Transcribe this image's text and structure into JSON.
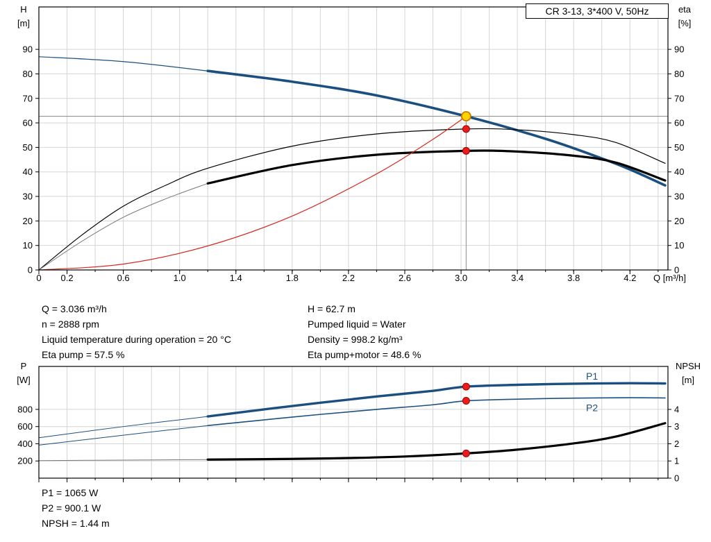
{
  "header": {
    "title_box": "CR 3-13, 3*400 V, 50Hz"
  },
  "info_left": [
    "Q = 3.036 m³/h",
    "n = 2888 rpm",
    "Liquid temperature during operation = 20 °C",
    "Eta pump = 57.5 %"
  ],
  "info_right": [
    "H = 62.7 m",
    "Pumped liquid = Water",
    "Density = 998.2 kg/m³",
    "Eta pump+motor = 48.6 %"
  ],
  "info_bottom": [
    "P1 = 1065 W",
    "P2 = 900.1 W",
    "NPSH = 1.44 m"
  ],
  "colors": {
    "curve_blue": "#1b4f7f",
    "curve_red": "#d42a1e",
    "marker_red": "#ec1c1c",
    "marker_red_edge": "#9b0000",
    "duty_fill": "#ffd200",
    "duty_stroke": "#c97b00",
    "grid": "#d4d4d4",
    "crosshair": "#8c8c8c",
    "black": "#000000",
    "gray_lead": "#777777",
    "frame": "#000000"
  },
  "chart_data": [
    {
      "type": "line",
      "title": "CR 3-13, 3*400 V, 50Hz",
      "x": {
        "label": "Q [m³/h]",
        "min": 0,
        "max": 4.47,
        "minor_step": 0.2,
        "show_labels": true,
        "tick_labels": [
          "0",
          "0.2",
          "0.6",
          "1.0",
          "1.4",
          "1.8",
          "2.2",
          "2.6",
          "3.0",
          "3.4",
          "3.8",
          "4.2"
        ]
      },
      "y_left": {
        "label": [
          "H",
          "[m]"
        ],
        "min": 0,
        "max": 107.3,
        "ticks": [
          0,
          10,
          20,
          30,
          40,
          50,
          60,
          70,
          80,
          90
        ]
      },
      "y_right": {
        "label": [
          "eta",
          "[%]"
        ],
        "min": 0,
        "max": 107.3,
        "ticks": [
          0,
          10,
          20,
          30,
          40,
          50,
          60,
          70,
          80,
          90
        ]
      },
      "duty_point": {
        "q": 3.036,
        "h": 62.7
      },
      "crosshair": {
        "x": 3.036,
        "y": 62.7
      },
      "series": [
        {
          "name": "qh-curve-extension",
          "axis": "left",
          "color_key": "curve_blue",
          "width": 1.2,
          "points": [
            [
              0,
              87
            ],
            [
              0.6,
              85.0
            ],
            [
              1.2,
              81.2
            ]
          ]
        },
        {
          "name": "qh-curve",
          "axis": "left",
          "color_key": "curve_blue",
          "width": 3.6,
          "points": [
            [
              1.2,
              81.2
            ],
            [
              1.8,
              76.8
            ],
            [
              2.4,
              71.2
            ],
            [
              3.036,
              62.7
            ],
            [
              3.6,
              53.5
            ],
            [
              4.0,
              45.5
            ],
            [
              4.2,
              41.0
            ],
            [
              4.45,
              34.5
            ]
          ]
        },
        {
          "name": "eta-pump-curve",
          "axis": "right",
          "color_key": "black",
          "width": 1.2,
          "points": [
            [
              0,
              0
            ],
            [
              0.3,
              14
            ],
            [
              0.6,
              26
            ],
            [
              0.9,
              34.5
            ],
            [
              1.2,
              41.5
            ],
            [
              1.8,
              50.5
            ],
            [
              2.4,
              55.5
            ],
            [
              3.036,
              57.5
            ],
            [
              3.4,
              57.2
            ],
            [
              3.8,
              55.2
            ],
            [
              4.1,
              52
            ],
            [
              4.45,
              43.5
            ]
          ]
        },
        {
          "name": "eta-pump-motor-extension",
          "axis": "right",
          "color_key": "gray_lead",
          "width": 1,
          "points": [
            [
              0,
              0
            ],
            [
              0.3,
              11.5
            ],
            [
              0.6,
              21.5
            ],
            [
              0.9,
              29
            ],
            [
              1.2,
              35.3
            ]
          ]
        },
        {
          "name": "eta-pump-motor-curve",
          "axis": "right",
          "color_key": "black",
          "width": 3.2,
          "points": [
            [
              1.2,
              35.3
            ],
            [
              1.8,
              42.8
            ],
            [
              2.4,
              47.0
            ],
            [
              3.036,
              48.6
            ],
            [
              3.4,
              48.3
            ],
            [
              3.8,
              46.6
            ],
            [
              4.1,
              43.8
            ],
            [
              4.45,
              36.5
            ]
          ]
        },
        {
          "name": "system-curve",
          "axis": "left",
          "color_key": "curve_red",
          "width": 1.2,
          "points": [
            [
              0,
              0
            ],
            [
              0.6,
              2.4
            ],
            [
              1.2,
              9.8
            ],
            [
              1.8,
              22.0
            ],
            [
              2.4,
              39.2
            ],
            [
              2.8,
              53.3
            ],
            [
              3.036,
              62.7
            ]
          ]
        }
      ],
      "markers": [
        {
          "name": "duty-point",
          "x": 3.036,
          "y": 62.7,
          "axis": "left",
          "style": "duty"
        },
        {
          "name": "eta-pump-point",
          "x": 3.036,
          "y": 57.5,
          "axis": "right",
          "style": "red"
        },
        {
          "name": "eta-pump-motor-point",
          "x": 3.036,
          "y": 48.6,
          "axis": "right",
          "style": "red"
        }
      ]
    },
    {
      "type": "line",
      "title": "Power and NPSH curves",
      "x": {
        "label": "",
        "min": 0,
        "max": 4.47,
        "minor_step": 0.2,
        "show_labels": false,
        "tick_labels": []
      },
      "y_left": {
        "label": [
          "P",
          "[W]"
        ],
        "min": 0,
        "max": 1300,
        "ticks": [
          200,
          400,
          600,
          800
        ]
      },
      "y_right": {
        "label": [
          "NPSH",
          "[m]"
        ],
        "min": 0,
        "max": 6.5,
        "ticks": [
          0,
          1,
          2,
          3,
          4
        ]
      },
      "series": [
        {
          "name": "p1-curve-extension",
          "axis": "left",
          "color_key": "curve_blue",
          "width": 1,
          "points": [
            [
              0,
              470
            ],
            [
              0.6,
              600
            ],
            [
              1.2,
              718
            ]
          ]
        },
        {
          "name": "p1-curve",
          "axis": "left",
          "color_key": "curve_blue",
          "width": 3.4,
          "points": [
            [
              1.2,
              718
            ],
            [
              1.6,
              800
            ],
            [
              2.0,
              878
            ],
            [
              2.4,
              950
            ],
            [
              2.8,
              1016
            ],
            [
              3.036,
              1065
            ],
            [
              3.4,
              1086
            ],
            [
              3.8,
              1099
            ],
            [
              4.2,
              1105
            ],
            [
              4.45,
              1102
            ]
          ]
        },
        {
          "name": "p2-curve-extension",
          "axis": "left",
          "color_key": "curve_blue",
          "width": 1,
          "points": [
            [
              0,
              385
            ],
            [
              0.6,
              500
            ],
            [
              1.2,
              612
            ]
          ]
        },
        {
          "name": "p2-curve",
          "axis": "left",
          "color_key": "curve_blue",
          "width": 1.6,
          "points": [
            [
              1.2,
              612
            ],
            [
              1.6,
              678
            ],
            [
              2.0,
              742
            ],
            [
              2.4,
              800
            ],
            [
              2.8,
              854
            ],
            [
              3.036,
              900
            ],
            [
              3.4,
              919
            ],
            [
              3.8,
              931
            ],
            [
              4.2,
              936
            ],
            [
              4.45,
              933
            ]
          ]
        },
        {
          "name": "npsh-curve-extension",
          "axis": "right",
          "color_key": "gray_lead",
          "width": 1,
          "points": [
            [
              0,
              1.02
            ],
            [
              0.6,
              1.05
            ],
            [
              1.2,
              1.08
            ]
          ]
        },
        {
          "name": "npsh-curve",
          "axis": "right",
          "color_key": "black",
          "width": 3.2,
          "points": [
            [
              1.2,
              1.08
            ],
            [
              1.8,
              1.12
            ],
            [
              2.2,
              1.17
            ],
            [
              2.6,
              1.26
            ],
            [
              3.036,
              1.44
            ],
            [
              3.4,
              1.66
            ],
            [
              3.8,
              2.02
            ],
            [
              4.1,
              2.42
            ],
            [
              4.45,
              3.2
            ]
          ]
        }
      ],
      "markers": [
        {
          "name": "p1-point",
          "x": 3.036,
          "y": 1065,
          "axis": "left",
          "style": "red"
        },
        {
          "name": "p2-point",
          "x": 3.036,
          "y": 900.1,
          "axis": "left",
          "style": "red"
        },
        {
          "name": "npsh-point",
          "x": 3.036,
          "y": 1.44,
          "axis": "right",
          "style": "red"
        }
      ],
      "annotations": [
        {
          "name": "p1-label",
          "text": "P1",
          "x": 3.93,
          "y": 1180,
          "axis": "left",
          "color_key": "curve_blue"
        },
        {
          "name": "p2-label",
          "text": "P2",
          "x": 3.93,
          "y": 810,
          "axis": "left",
          "color_key": "curve_blue"
        }
      ]
    }
  ]
}
